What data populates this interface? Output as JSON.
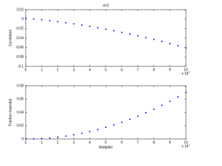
{
  "chart_data": [
    {
      "type": "scatter",
      "title": "α=3",
      "y_label": "Correlation",
      "x_exponent_label": {
        "base": "x 10",
        "exponent": "7"
      },
      "color": "#0000ff",
      "x": [
        0,
        0.5,
        1,
        1.5,
        2,
        2.5,
        3,
        3.5,
        4,
        4.5,
        5,
        5.5,
        6,
        6.5,
        7,
        7.5,
        8,
        8.5,
        9,
        9.5,
        10
      ],
      "values": [
        0.002,
        0.0004,
        -0.0013,
        -0.0032,
        -0.0053,
        -0.0076,
        -0.01,
        -0.0125,
        -0.0153,
        -0.0182,
        -0.0213,
        -0.0245,
        -0.0279,
        -0.0314,
        -0.0352,
        -0.0391,
        -0.0431,
        -0.0473,
        -0.0517,
        -0.0563,
        -0.061
      ],
      "xlim": [
        0,
        10
      ],
      "xticks": [
        0,
        1,
        2,
        3,
        4,
        5,
        6,
        7,
        8,
        9,
        10
      ],
      "ylim": [
        -0.1,
        0.02
      ],
      "yticks": [
        -0.1,
        -0.08,
        -0.06,
        -0.04,
        -0.02,
        0,
        0.02
      ]
    },
    {
      "type": "scatter",
      "y_label": "Fraction essential",
      "x_label": "Multiplier",
      "x_exponent_label": {
        "base": "x 10",
        "exponent": "7"
      },
      "color": "#0000ff",
      "x": [
        0,
        0.5,
        1,
        1.5,
        2,
        2.5,
        3,
        3.5,
        4,
        4.5,
        5,
        5.5,
        6,
        6.5,
        7,
        7.5,
        8,
        8.5,
        9,
        9.5,
        10
      ],
      "values": [
        0,
        0.0002,
        0.0007,
        0.0016,
        0.0028,
        0.0044,
        0.0063,
        0.0086,
        0.0112,
        0.0142,
        0.0175,
        0.0212,
        0.0252,
        0.0296,
        0.0343,
        0.0394,
        0.0448,
        0.0506,
        0.0567,
        0.0632,
        0.07
      ],
      "xlim": [
        0,
        10
      ],
      "xticks": [
        0,
        1,
        2,
        3,
        4,
        5,
        6,
        7,
        8,
        9,
        10
      ],
      "ylim": [
        0,
        0.08
      ],
      "yticks": [
        0,
        0.02,
        0.04,
        0.06,
        0.08
      ]
    }
  ]
}
